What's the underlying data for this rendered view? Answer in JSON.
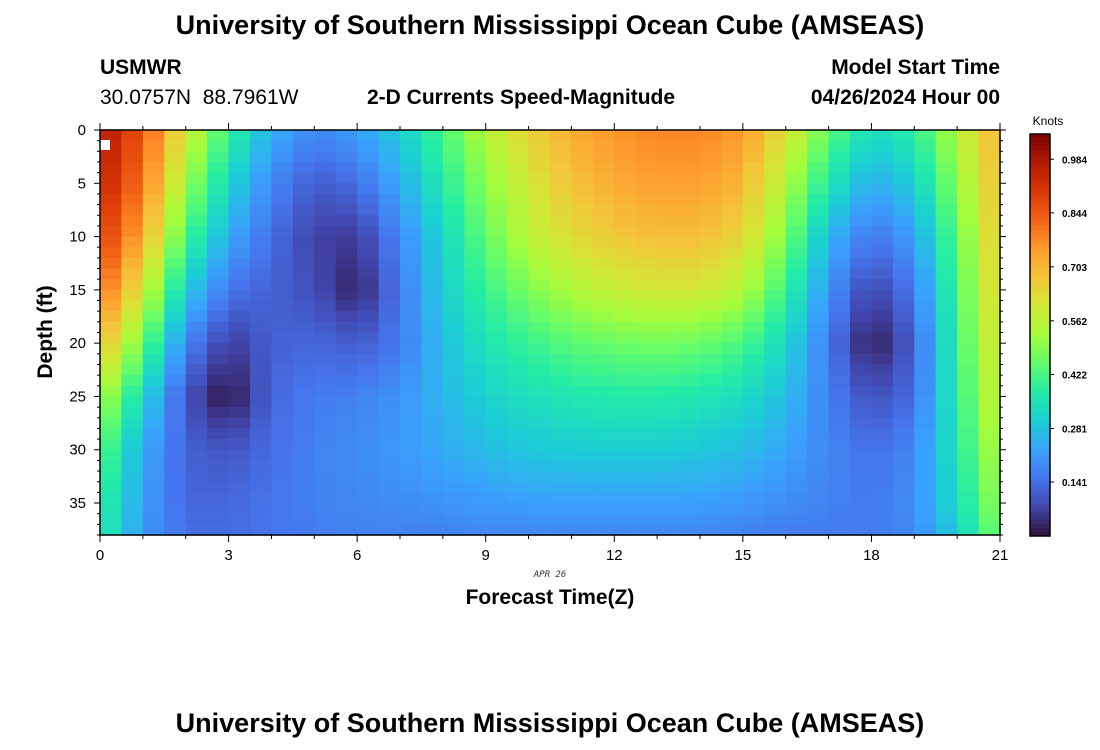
{
  "title": "University of Southern Mississippi Ocean Cube (AMSEAS)",
  "footer_title": "University of Southern Mississippi Ocean Cube (AMSEAS)",
  "station": {
    "name": "USMWR",
    "lat": "30.0757N",
    "lon": "88.7961W"
  },
  "plot_title": "2-D Currents Speed-Magnitude",
  "model_start": {
    "label": "Model Start Time",
    "value": "04/26/2024 Hour 00"
  },
  "chart_data": {
    "type": "heatmap",
    "title": "2-D Currents Speed-Magnitude",
    "xlabel": "Forecast Time(Z)",
    "ylabel": "Depth (ft)",
    "x_date_label": "APR 26",
    "xlim": [
      0,
      21
    ],
    "ylim": [
      38,
      0
    ],
    "x_ticks": [
      0,
      3,
      6,
      9,
      12,
      15,
      18,
      21
    ],
    "y_ticks": [
      0,
      5,
      10,
      15,
      20,
      25,
      30,
      35
    ],
    "colorbar": {
      "label": "Knots",
      "min": 0.0,
      "max": 1.05,
      "ticks": [
        "0.984",
        "0.844",
        "0.703",
        "0.562",
        "0.422",
        "0.281",
        "0.141"
      ]
    },
    "colormap": [
      "#30123b",
      "#4145ab",
      "#4675ed",
      "#39a2fc",
      "#1bcfd4",
      "#24eca6",
      "#61fc6c",
      "#a4fc3b",
      "#d1e834",
      "#f3c63a",
      "#fe9b2d",
      "#f36315",
      "#d93806",
      "#b11901",
      "#7a0402"
    ],
    "time_hours": [
      0,
      1,
      2,
      3,
      4,
      5,
      6,
      7,
      8,
      9,
      10,
      11,
      12,
      13,
      14,
      15,
      16,
      17,
      18,
      19,
      20,
      21
    ],
    "depth_ft": [
      0,
      5,
      10,
      15,
      20,
      25,
      30,
      35,
      38
    ],
    "speed_knots": [
      [
        0.98,
        0.85,
        0.6,
        0.4,
        0.25,
        0.18,
        0.22,
        0.3,
        0.42,
        0.55,
        0.65,
        0.72,
        0.76,
        0.78,
        0.78,
        0.75,
        0.62,
        0.45,
        0.33,
        0.38,
        0.55,
        0.72
      ],
      [
        0.95,
        0.8,
        0.52,
        0.32,
        0.18,
        0.11,
        0.14,
        0.24,
        0.37,
        0.5,
        0.6,
        0.68,
        0.72,
        0.74,
        0.74,
        0.7,
        0.55,
        0.36,
        0.24,
        0.3,
        0.5,
        0.7
      ],
      [
        0.9,
        0.72,
        0.42,
        0.24,
        0.14,
        0.07,
        0.06,
        0.18,
        0.32,
        0.45,
        0.56,
        0.63,
        0.67,
        0.69,
        0.69,
        0.64,
        0.48,
        0.26,
        0.15,
        0.22,
        0.45,
        0.68
      ],
      [
        0.82,
        0.6,
        0.3,
        0.15,
        0.12,
        0.09,
        0.02,
        0.16,
        0.3,
        0.4,
        0.48,
        0.54,
        0.58,
        0.6,
        0.6,
        0.55,
        0.4,
        0.2,
        0.07,
        0.16,
        0.42,
        0.66
      ],
      [
        0.7,
        0.46,
        0.18,
        0.06,
        0.12,
        0.13,
        0.11,
        0.16,
        0.27,
        0.35,
        0.4,
        0.44,
        0.46,
        0.47,
        0.46,
        0.42,
        0.32,
        0.16,
        0.01,
        0.12,
        0.4,
        0.63
      ],
      [
        0.55,
        0.32,
        0.1,
        0.0,
        0.13,
        0.16,
        0.17,
        0.2,
        0.26,
        0.31,
        0.34,
        0.36,
        0.37,
        0.37,
        0.36,
        0.33,
        0.27,
        0.17,
        0.09,
        0.14,
        0.38,
        0.6
      ],
      [
        0.45,
        0.24,
        0.12,
        0.1,
        0.14,
        0.17,
        0.19,
        0.21,
        0.24,
        0.27,
        0.29,
        0.3,
        0.3,
        0.3,
        0.29,
        0.27,
        0.23,
        0.18,
        0.14,
        0.18,
        0.36,
        0.56
      ],
      [
        0.4,
        0.22,
        0.13,
        0.13,
        0.15,
        0.17,
        0.18,
        0.19,
        0.2,
        0.21,
        0.22,
        0.22,
        0.22,
        0.22,
        0.22,
        0.21,
        0.19,
        0.17,
        0.16,
        0.19,
        0.33,
        0.52
      ],
      [
        0.38,
        0.21,
        0.14,
        0.14,
        0.15,
        0.16,
        0.17,
        0.17,
        0.17,
        0.18,
        0.18,
        0.18,
        0.18,
        0.18,
        0.18,
        0.17,
        0.16,
        0.16,
        0.16,
        0.18,
        0.3,
        0.48
      ]
    ]
  }
}
